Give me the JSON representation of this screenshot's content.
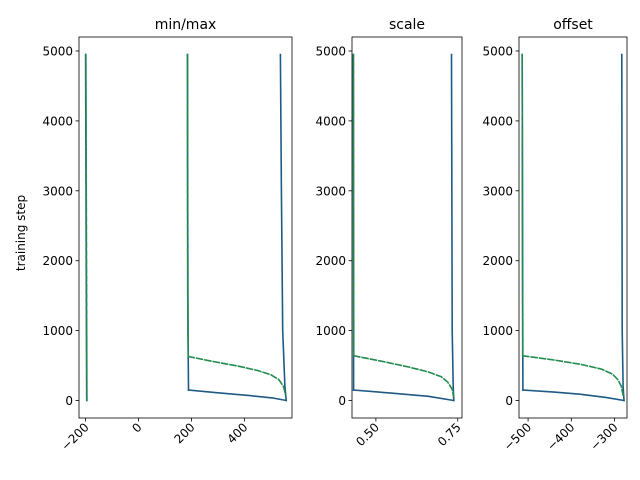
{
  "chart_data": {
    "type": "line",
    "ylabel": "training step",
    "colors": {
      "solid": "#1f5a85",
      "dashed": "#228b4e"
    },
    "panels": [
      {
        "title": "min/max",
        "xlim": [
          -225,
          580
        ],
        "ylim": [
          -250,
          5200
        ],
        "xticks": [
          -200,
          0,
          200,
          400
        ],
        "xtick_labels": [
          "−200",
          "0",
          "200",
          "400"
        ],
        "yticks": [
          0,
          1000,
          2000,
          3000,
          4000,
          5000
        ],
        "ytick_labels": [
          "0",
          "1000",
          "2000",
          "3000",
          "4000",
          "5000"
        ],
        "series": [
          {
            "style": "solid",
            "x": [
              -196,
              -198,
              -200
            ],
            "y": [
              0,
              2500,
              4950
            ]
          },
          {
            "style": "dashed",
            "x": [
              -195,
              -197,
              -199
            ],
            "y": [
              0,
              2500,
              4950
            ]
          },
          {
            "style": "solid",
            "x": [
              189,
              187,
              186,
              185
            ],
            "y": [
              150,
              1000,
              3000,
              4950
            ]
          },
          {
            "style": "dashed",
            "x": [
              188,
              186,
              185,
              185
            ],
            "y": [
              630,
              1500,
              3000,
              4950
            ]
          },
          {
            "style": "solid",
            "x": [
              558,
              553,
              545,
              540,
              536
            ],
            "y": [
              0,
              200,
              1000,
              3000,
              4950
            ]
          },
          {
            "style": "solid",
            "x": [
              189,
              300,
              420,
              510,
              558
            ],
            "y": [
              150,
              110,
              70,
              35,
              0
            ]
          },
          {
            "style": "dashed",
            "x": [
              188,
              280,
              380,
              450,
              500,
              530,
              548,
              556
            ],
            "y": [
              630,
              560,
              490,
              430,
              370,
              300,
              200,
              80
            ]
          }
        ]
      },
      {
        "title": "scale",
        "xlim": [
          0.427,
          0.763
        ],
        "ylim": [
          -250,
          5200
        ],
        "xticks": [
          0.5,
          0.75
        ],
        "xtick_labels": [
          "0.50",
          "0.75"
        ],
        "yticks": [
          0,
          1000,
          2000,
          3000,
          4000,
          5000
        ],
        "ytick_labels": [
          "0",
          "1000",
          "2000",
          "3000",
          "4000",
          "5000"
        ],
        "series": [
          {
            "style": "solid",
            "x": [
              0.432,
              0.4315,
              0.431
            ],
            "y": [
              150,
              2500,
              4950
            ]
          },
          {
            "style": "dashed",
            "x": [
              0.4325,
              0.432,
              0.4315
            ],
            "y": [
              640,
              2500,
              4950
            ]
          },
          {
            "style": "solid",
            "x": [
              0.738,
              0.736,
              0.733,
              0.731
            ],
            "y": [
              0,
              200,
              1000,
              4950
            ]
          },
          {
            "style": "solid",
            "x": [
              0.432,
              0.55,
              0.66,
              0.738
            ],
            "y": [
              150,
              105,
              60,
              0
            ]
          },
          {
            "style": "dashed",
            "x": [
              0.4325,
              0.52,
              0.6,
              0.66,
              0.7,
              0.72,
              0.733,
              0.737
            ],
            "y": [
              640,
              560,
              480,
              410,
              340,
              260,
              160,
              60
            ]
          }
        ]
      },
      {
        "title": "offset",
        "xlim": [
          -521,
          -271
        ],
        "ylim": [
          -250,
          5200
        ],
        "xticks": [
          -500,
          -400,
          -300
        ],
        "xtick_labels": [
          "−500",
          "−400",
          "−300"
        ],
        "yticks": [
          0,
          1000,
          2000,
          3000,
          4000,
          5000
        ],
        "ytick_labels": [
          "0",
          "1000",
          "2000",
          "3000",
          "4000",
          "5000"
        ],
        "series": [
          {
            "style": "solid",
            "x": [
              -512,
              -513,
              -513.5
            ],
            "y": [
              150,
              2500,
              4950
            ]
          },
          {
            "style": "dashed",
            "x": [
              -512.5,
              -513,
              -513.5
            ],
            "y": [
              640,
              2500,
              4950
            ]
          },
          {
            "style": "solid",
            "x": [
              -278,
              -280,
              -282,
              -283
            ],
            "y": [
              0,
              200,
              1000,
              4950
            ]
          },
          {
            "style": "solid",
            "x": [
              -512,
              -440,
              -380,
              -320,
              -278
            ],
            "y": [
              150,
              120,
              90,
              45,
              0
            ]
          },
          {
            "style": "dashed",
            "x": [
              -512.5,
              -440,
              -380,
              -330,
              -305,
              -292,
              -284,
              -280
            ],
            "y": [
              640,
              580,
              520,
              450,
              380,
              300,
              200,
              80
            ]
          }
        ]
      }
    ]
  }
}
